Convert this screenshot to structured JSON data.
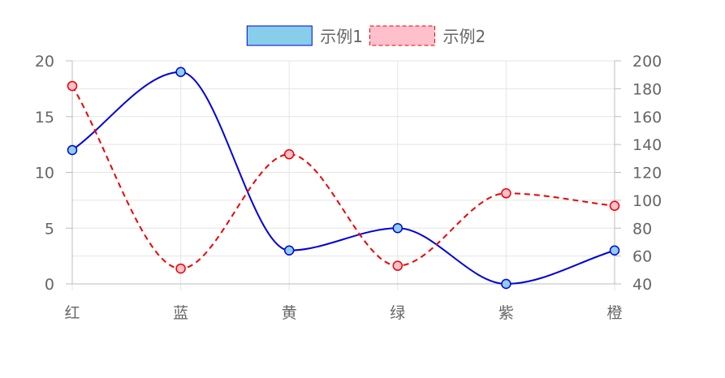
{
  "chart_data": {
    "type": "line",
    "categories": [
      "红",
      "蓝",
      "黄",
      "绿",
      "紫",
      "橙"
    ],
    "y_left": {
      "min": 0,
      "max": 20,
      "ticks": [
        0,
        5,
        10,
        15,
        20
      ]
    },
    "y_right": {
      "min": 40,
      "max": 200,
      "ticks": [
        40,
        60,
        80,
        100,
        120,
        140,
        160,
        180,
        200
      ]
    },
    "grid": true,
    "legend_position": "top-center",
    "series": [
      {
        "name": "示例1",
        "axis": "left",
        "values": [
          12,
          19,
          3,
          5,
          0,
          3
        ],
        "line_color": "#0000dd",
        "point_fill": "#8ecff0",
        "legend_fill": "#87ceeb",
        "dashed": false
      },
      {
        "name": "示例2",
        "axis": "right",
        "values": [
          182,
          51,
          133,
          53,
          105,
          96
        ],
        "line_color": "#ee0000",
        "point_fill": "#ffc0cb",
        "legend_fill": "#ffc0cb",
        "dashed": true
      }
    ]
  }
}
